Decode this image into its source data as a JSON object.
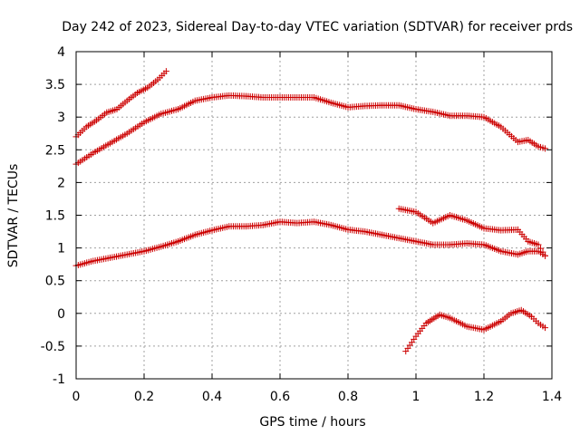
{
  "chart_data": {
    "type": "scatter",
    "title": "Day 242 of 2023, Sidereal Day-to-day VTEC variation (SDTVAR) for receiver prds",
    "xlabel": "GPS time / hours",
    "ylabel": "SDTVAR / TECUs",
    "xlim": [
      0,
      1.4
    ],
    "ylim": [
      -1,
      4
    ],
    "xticks": [
      0,
      0.2,
      0.4,
      0.6,
      0.8,
      1,
      1.2,
      1.4
    ],
    "yticks": [
      -1,
      -0.5,
      0,
      0.5,
      1,
      1.5,
      2,
      2.5,
      3,
      3.5,
      4
    ],
    "grid": true,
    "marker": "+",
    "marker_color": "#cc0000",
    "series": [
      {
        "name": "series-1",
        "points": [
          [
            0.0,
            2.7
          ],
          [
            0.03,
            2.85
          ],
          [
            0.06,
            2.95
          ],
          [
            0.09,
            3.07
          ],
          [
            0.12,
            3.12
          ],
          [
            0.15,
            3.25
          ],
          [
            0.18,
            3.37
          ],
          [
            0.21,
            3.45
          ],
          [
            0.24,
            3.57
          ],
          [
            0.265,
            3.7
          ]
        ]
      },
      {
        "name": "series-2",
        "points": [
          [
            0.0,
            2.28
          ],
          [
            0.05,
            2.45
          ],
          [
            0.1,
            2.6
          ],
          [
            0.15,
            2.75
          ],
          [
            0.2,
            2.92
          ],
          [
            0.25,
            3.05
          ],
          [
            0.3,
            3.12
          ],
          [
            0.35,
            3.25
          ],
          [
            0.4,
            3.3
          ],
          [
            0.45,
            3.33
          ],
          [
            0.5,
            3.32
          ],
          [
            0.55,
            3.3
          ],
          [
            0.6,
            3.3
          ],
          [
            0.65,
            3.3
          ],
          [
            0.7,
            3.3
          ],
          [
            0.75,
            3.22
          ],
          [
            0.8,
            3.15
          ],
          [
            0.85,
            3.17
          ],
          [
            0.9,
            3.18
          ],
          [
            0.95,
            3.18
          ],
          [
            1.0,
            3.12
          ],
          [
            1.05,
            3.08
          ],
          [
            1.1,
            3.02
          ],
          [
            1.15,
            3.02
          ],
          [
            1.2,
            3.0
          ],
          [
            1.25,
            2.85
          ],
          [
            1.3,
            2.62
          ],
          [
            1.33,
            2.65
          ],
          [
            1.36,
            2.55
          ],
          [
            1.38,
            2.52
          ]
        ]
      },
      {
        "name": "series-3",
        "points": [
          [
            0.0,
            0.73
          ],
          [
            0.05,
            0.8
          ],
          [
            0.1,
            0.85
          ],
          [
            0.15,
            0.9
          ],
          [
            0.2,
            0.95
          ],
          [
            0.25,
            1.02
          ],
          [
            0.3,
            1.1
          ],
          [
            0.35,
            1.2
          ],
          [
            0.4,
            1.27
          ],
          [
            0.45,
            1.33
          ],
          [
            0.5,
            1.33
          ],
          [
            0.55,
            1.35
          ],
          [
            0.6,
            1.4
          ],
          [
            0.65,
            1.38
          ],
          [
            0.7,
            1.4
          ],
          [
            0.75,
            1.35
          ],
          [
            0.8,
            1.28
          ],
          [
            0.85,
            1.25
          ],
          [
            0.9,
            1.2
          ],
          [
            0.95,
            1.15
          ],
          [
            1.0,
            1.1
          ],
          [
            1.05,
            1.05
          ],
          [
            1.1,
            1.05
          ],
          [
            1.15,
            1.07
          ],
          [
            1.2,
            1.05
          ],
          [
            1.25,
            0.95
          ],
          [
            1.3,
            0.9
          ],
          [
            1.33,
            0.95
          ],
          [
            1.36,
            0.95
          ],
          [
            1.38,
            0.88
          ]
        ]
      },
      {
        "name": "series-4",
        "points": [
          [
            0.95,
            1.6
          ],
          [
            1.0,
            1.55
          ],
          [
            1.05,
            1.38
          ],
          [
            1.1,
            1.5
          ],
          [
            1.15,
            1.42
          ],
          [
            1.2,
            1.3
          ],
          [
            1.25,
            1.27
          ],
          [
            1.3,
            1.28
          ],
          [
            1.33,
            1.1
          ],
          [
            1.36,
            1.05
          ],
          [
            1.38,
            0.88
          ]
        ]
      },
      {
        "name": "series-5",
        "points": [
          [
            0.97,
            -0.58
          ],
          [
            1.0,
            -0.35
          ],
          [
            1.03,
            -0.15
          ],
          [
            1.07,
            -0.02
          ],
          [
            1.1,
            -0.07
          ],
          [
            1.15,
            -0.2
          ],
          [
            1.2,
            -0.25
          ],
          [
            1.25,
            -0.12
          ],
          [
            1.28,
            0.0
          ],
          [
            1.31,
            0.05
          ],
          [
            1.34,
            -0.05
          ],
          [
            1.36,
            -0.15
          ],
          [
            1.38,
            -0.22
          ]
        ]
      }
    ]
  }
}
